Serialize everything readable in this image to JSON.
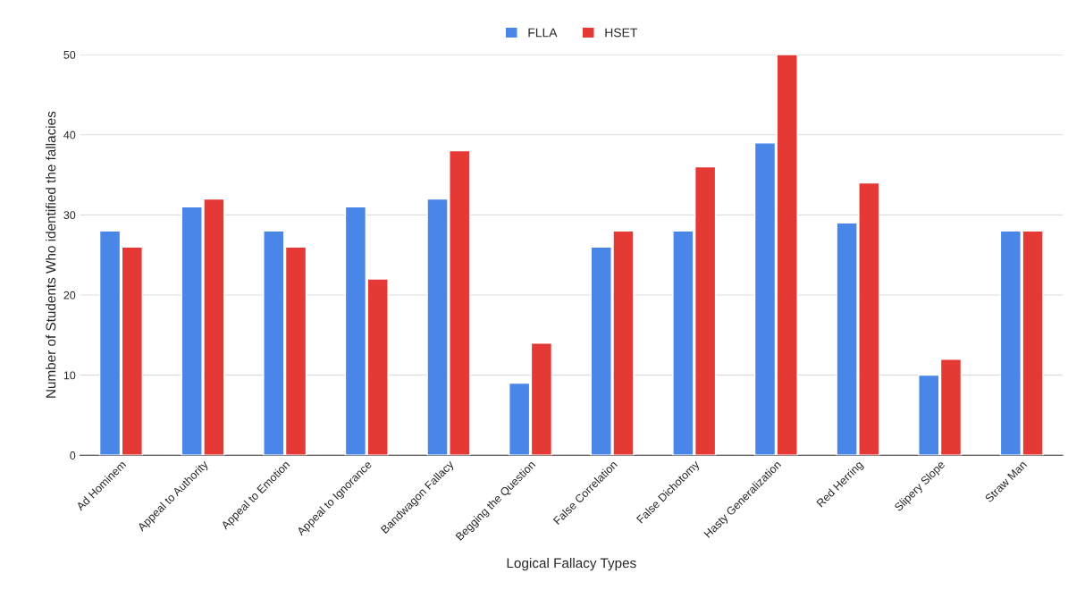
{
  "chart_data": {
    "type": "bar",
    "xlabel": "Logical Fallacy Types",
    "ylabel": "Number of Students Who identified the fallacies",
    "categories": [
      "Ad Hominem",
      "Appeal to Authority",
      "Appeal to Emotion",
      "Appeal to Ignorance",
      "Bandwagon Fallacy",
      "Begging the Question",
      "False Correlation",
      "False Dichotomy",
      "Hasty Generalization",
      "Red Herring",
      "Slipery Slope",
      "Straw Man"
    ],
    "series": [
      {
        "name": "FLLA",
        "color": "#4a86e8",
        "values": [
          28,
          31,
          28,
          31,
          32,
          9,
          26,
          28,
          39,
          29,
          10,
          28
        ]
      },
      {
        "name": "HSET",
        "color": "#e53935",
        "values": [
          26,
          32,
          26,
          22,
          38,
          14,
          28,
          36,
          50,
          34,
          12,
          28
        ]
      }
    ],
    "ylim": [
      0,
      50
    ],
    "yticks": [
      0,
      10,
      20,
      30,
      40,
      50
    ],
    "grid": "y",
    "legend": "top"
  }
}
